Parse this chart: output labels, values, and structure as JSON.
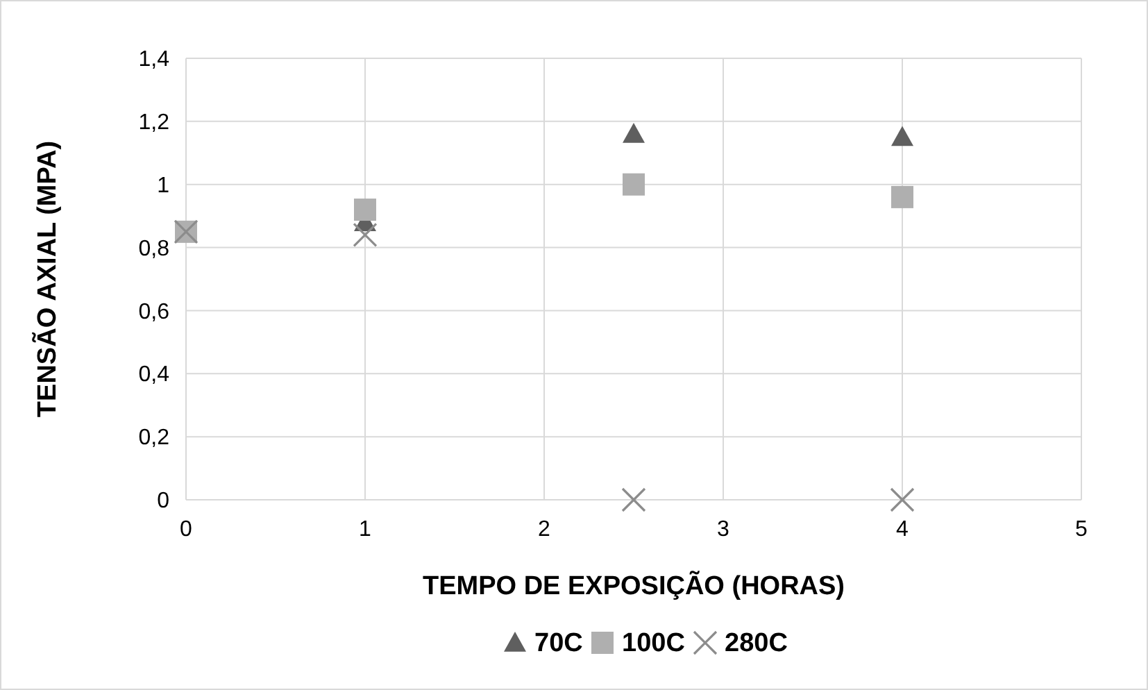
{
  "chart_data": {
    "type": "scatter",
    "xlabel": "TEMPO DE EXPOSIÇÃO (HORAS)",
    "ylabel": "TENSÃO AXIAL (MPA)",
    "x": [
      0,
      1,
      2.5,
      4
    ],
    "series": [
      {
        "name": "70C",
        "color": "#5f5f5f",
        "marker": "triangle",
        "values": [
          null,
          0.88,
          1.16,
          1.15
        ]
      },
      {
        "name": "100C",
        "color": "#afafaf",
        "marker": "square",
        "values": [
          0.85,
          0.92,
          1.0,
          0.96
        ]
      },
      {
        "name": "280C",
        "color": "#8c8c8c",
        "marker": "cross",
        "values": [
          0.85,
          0.84,
          0,
          0
        ]
      }
    ],
    "xlim": [
      0,
      5
    ],
    "xticks": [
      0,
      1,
      2,
      3,
      4,
      5
    ],
    "ylim": [
      0,
      1.4
    ],
    "yticks": [
      {
        "value": 0,
        "label": "0"
      },
      {
        "value": 0.2,
        "label": "0,2"
      },
      {
        "value": 0.4,
        "label": "0,4"
      },
      {
        "value": 0.6,
        "label": "0,6"
      },
      {
        "value": 0.8,
        "label": "0,8"
      },
      {
        "value": 1,
        "label": "1"
      },
      {
        "value": 1.2,
        "label": "1,2"
      },
      {
        "value": 1.4,
        "label": "1,4"
      }
    ],
    "grid": true,
    "legend": "bottom"
  }
}
